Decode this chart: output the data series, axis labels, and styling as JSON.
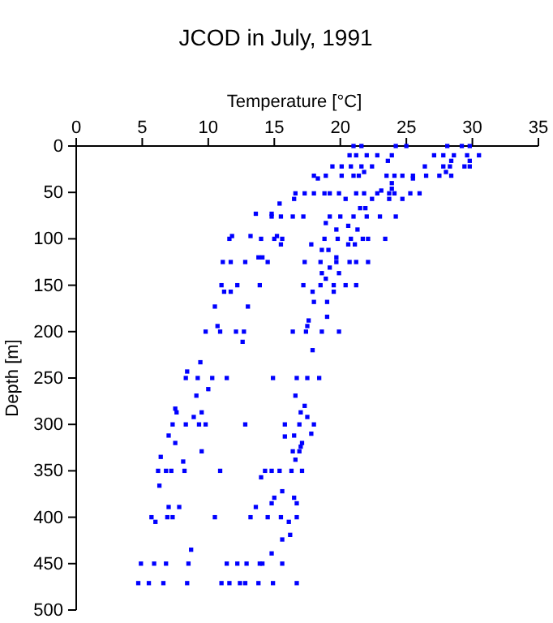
{
  "chart_data": {
    "type": "scatter",
    "title": "JCOD in July, 1991",
    "xlabel": "Temperature [°C]",
    "ylabel": "Depth [m]",
    "xlim": [
      0,
      35
    ],
    "xticks": [
      0,
      5,
      10,
      15,
      20,
      25,
      30,
      35
    ],
    "ylim": [
      500,
      0
    ],
    "yticks": [
      0,
      50,
      100,
      150,
      200,
      250,
      300,
      350,
      400,
      450,
      500
    ],
    "marker": "square",
    "grid": false,
    "series": [
      {
        "color": "#0000ff",
        "x": [
          21.0,
          21.6,
          24.2,
          25.0,
          28.1,
          29.2,
          29.8,
          20.7,
          21.2,
          22.0,
          22.8,
          23.9,
          27.1,
          27.8,
          28.6,
          29.6,
          30.5,
          23.6,
          28.4,
          29.8,
          19.4,
          20.1,
          20.8,
          21.6,
          22.4,
          26.4,
          27.8,
          28.3,
          29.4,
          29.8,
          21.8,
          28.0,
          18.0,
          18.9,
          20.1,
          21.0,
          21.4,
          23.5,
          24.1,
          24.7,
          25.5,
          26.5,
          27.5,
          28.4,
          18.3,
          25.5,
          23.9,
          23.9,
          23.1,
          16.6,
          17.3,
          18.0,
          18.8,
          19.2,
          19.9,
          21.2,
          21.8,
          22.8,
          23.7,
          24.1,
          25.3,
          26.0,
          16.5,
          20.4,
          22.4,
          23.7,
          24.7,
          15.4,
          21.5,
          21.9,
          14.8,
          13.6,
          14.8,
          15.5,
          16.4,
          17.2,
          19.2,
          20.0,
          21.0,
          22.0,
          23.0,
          24.2,
          18.9,
          20.6,
          19.7,
          21.3,
          11.8,
          13.2,
          15.2,
          11.6,
          14.0,
          15.0,
          15.6,
          18.8,
          19.8,
          20.8,
          21.7,
          22.1,
          23.4,
          15.5,
          17.8,
          20.6,
          21.1,
          18.6,
          19.1,
          13.8,
          14.1,
          19.7,
          11.1,
          11.7,
          12.8,
          14.5,
          17.3,
          18.5,
          19.7,
          20.7,
          21.2,
          22.1,
          19.2,
          18.6,
          19.9,
          18.9,
          11.0,
          12.2,
          13.9,
          17.2,
          18.5,
          19.5,
          20.4,
          21.2,
          11.2,
          11.7,
          17.9,
          19.5,
          18.0,
          19.0,
          10.5,
          13.0,
          19.0,
          17.6,
          10.7,
          17.5,
          9.8,
          10.9,
          12.1,
          12.7,
          16.4,
          17.4,
          18.6,
          19.9,
          12.6,
          17.9,
          9.4,
          8.4,
          8.3,
          9.2,
          10.3,
          11.4,
          14.9,
          16.7,
          17.5,
          18.4,
          10.0,
          9.1,
          16.6,
          17.3,
          7.5,
          7.6,
          9.5,
          17.0,
          8.9,
          17.5,
          7.3,
          8.3,
          9.3,
          9.8,
          12.8,
          15.8,
          16.9,
          18.0,
          17.8,
          7.0,
          16.5,
          15.8,
          17.1,
          7.5,
          17.0,
          16.4,
          9.5,
          16.9,
          6.4,
          16.6,
          8.1,
          6.2,
          6.8,
          7.2,
          8.2,
          10.9,
          14.3,
          14.8,
          15.4,
          16.3,
          17.1,
          14.0,
          6.3,
          15.6,
          15.0,
          16.5,
          14.8,
          16.7,
          7.0,
          7.8,
          13.6,
          5.7,
          6.9,
          7.3,
          10.5,
          13.2,
          14.5,
          15.5,
          16.7,
          6.0,
          16.1,
          16.2,
          15.6,
          8.7,
          14.8,
          4.9,
          5.9,
          6.8,
          8.5,
          11.4,
          12.2,
          12.9,
          13.9,
          14.1,
          15.6,
          4.7,
          5.5,
          6.6,
          8.4,
          11.0,
          11.6,
          12.4,
          12.8,
          13.8,
          14.9,
          16.7
        ],
        "values": [
          0,
          0,
          0,
          0,
          0,
          0,
          0,
          10,
          10,
          10,
          10,
          10,
          10,
          10,
          10,
          10,
          10,
          16,
          16,
          16,
          22,
          22,
          22,
          22,
          22,
          22,
          22,
          22,
          22,
          22,
          28,
          28,
          32,
          32,
          32,
          32,
          32,
          32,
          32,
          32,
          32,
          32,
          32,
          32,
          35,
          35,
          40,
          46,
          48,
          51,
          51,
          51,
          51,
          51,
          51,
          51,
          51,
          51,
          51,
          51,
          51,
          51,
          57,
          57,
          57,
          57,
          57,
          62,
          67,
          67,
          73,
          73,
          76,
          76,
          76,
          76,
          76,
          76,
          76,
          76,
          76,
          76,
          83,
          86,
          90,
          90,
          97,
          97,
          97,
          100,
          100,
          100,
          100,
          100,
          100,
          100,
          100,
          100,
          100,
          106,
          106,
          106,
          106,
          112,
          112,
          120,
          120,
          120,
          125,
          125,
          125,
          125,
          125,
          125,
          125,
          125,
          125,
          125,
          131,
          137,
          137,
          143,
          150,
          150,
          150,
          150,
          150,
          150,
          150,
          150,
          157,
          157,
          157,
          157,
          168,
          168,
          173,
          173,
          184,
          188,
          194,
          194,
          200,
          200,
          200,
          200,
          200,
          200,
          200,
          200,
          211,
          220,
          233,
          243,
          250,
          250,
          250,
          250,
          250,
          250,
          250,
          250,
          262,
          269,
          269,
          280,
          283,
          287,
          287,
          287,
          292,
          292,
          300,
          300,
          300,
          300,
          300,
          300,
          300,
          300,
          310,
          312,
          312,
          313,
          320,
          320,
          324,
          329,
          329,
          329,
          335,
          338,
          340,
          350,
          350,
          350,
          350,
          350,
          350,
          350,
          350,
          350,
          350,
          357,
          366,
          372,
          379,
          379,
          385,
          385,
          389,
          389,
          389,
          400,
          400,
          400,
          400,
          400,
          400,
          400,
          400,
          405,
          405,
          419,
          424,
          435,
          439,
          450,
          450,
          450,
          450,
          450,
          450,
          450,
          450,
          450,
          450,
          471,
          471,
          471,
          471,
          471,
          471,
          471,
          471,
          471,
          471,
          471
        ]
      }
    ]
  }
}
